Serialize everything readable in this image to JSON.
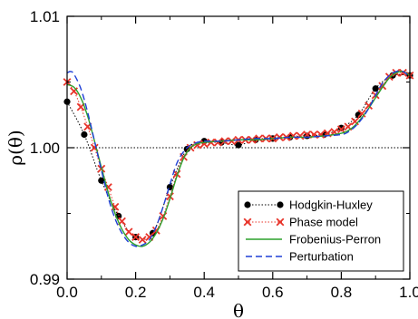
{
  "chart_data": {
    "type": "line",
    "xlabel": "θ",
    "ylabel": "ρ(θ)",
    "xlim": [
      0.0,
      1.0
    ],
    "ylim": [
      0.99,
      1.01
    ],
    "x_ticks": [
      "0.0",
      "0.2",
      "0.4",
      "0.6",
      "0.8",
      "1.0"
    ],
    "y_ticks": [
      "0.99",
      "1.00",
      "1.01"
    ],
    "reference_line_y": 1.0,
    "legend_position": "bottom-right",
    "series": [
      {
        "name": "Hodgkin-Huxley",
        "style": "dotted-circles",
        "color": "#000000",
        "x": [
          0.0,
          0.05,
          0.1,
          0.15,
          0.2,
          0.25,
          0.3,
          0.35,
          0.4,
          0.45,
          0.5,
          0.55,
          0.6,
          0.65,
          0.7,
          0.75,
          0.8,
          0.85,
          0.9,
          0.95,
          1.0
        ],
        "y": [
          1.0035,
          1.001,
          0.9975,
          0.9948,
          0.9932,
          0.9935,
          0.997,
          0.9999,
          1.0005,
          1.0004,
          1.0002,
          1.0006,
          1.0007,
          1.0008,
          1.0009,
          1.001,
          1.0015,
          1.0025,
          1.0045,
          1.0055,
          1.0055
        ]
      },
      {
        "name": "Phase model",
        "style": "dotted-crosses",
        "color": "#e8342a",
        "x": [
          0.0,
          0.02,
          0.04,
          0.06,
          0.08,
          0.1,
          0.12,
          0.14,
          0.16,
          0.18,
          0.2,
          0.22,
          0.24,
          0.26,
          0.28,
          0.3,
          0.32,
          0.34,
          0.36,
          0.38,
          0.4,
          0.42,
          0.44,
          0.46,
          0.48,
          0.5,
          0.52,
          0.54,
          0.56,
          0.58,
          0.6,
          0.62,
          0.64,
          0.66,
          0.68,
          0.7,
          0.72,
          0.74,
          0.76,
          0.78,
          0.8,
          0.82,
          0.84,
          0.86,
          0.88,
          0.9,
          0.92,
          0.94,
          0.96,
          0.98,
          1.0
        ],
        "y": [
          1.005,
          1.0043,
          1.0031,
          1.0016,
          1.0,
          0.9984,
          0.997,
          0.9955,
          0.9944,
          0.9936,
          0.9932,
          0.993,
          0.9932,
          0.9937,
          0.9948,
          0.9963,
          0.998,
          0.9993,
          1.0,
          1.0002,
          1.0003,
          1.0004,
          1.0004,
          1.0005,
          1.0005,
          1.0006,
          1.0006,
          1.0006,
          1.0007,
          1.0007,
          1.0007,
          1.0008,
          1.0008,
          1.0009,
          1.0009,
          1.001,
          1.001,
          1.001,
          1.0011,
          1.0012,
          1.0014,
          1.0016,
          1.002,
          1.0026,
          1.0032,
          1.004,
          1.0047,
          1.0054,
          1.0057,
          1.0057,
          1.0055
        ]
      },
      {
        "name": "Frobenius-Perron",
        "style": "solid",
        "color": "#2ca02c",
        "x": [
          0.0,
          0.02,
          0.04,
          0.06,
          0.08,
          0.1,
          0.12,
          0.14,
          0.16,
          0.18,
          0.2,
          0.22,
          0.24,
          0.26,
          0.28,
          0.3,
          0.32,
          0.34,
          0.36,
          0.38,
          0.4,
          0.45,
          0.5,
          0.55,
          0.6,
          0.65,
          0.7,
          0.75,
          0.8,
          0.82,
          0.84,
          0.86,
          0.88,
          0.9,
          0.92,
          0.94,
          0.96,
          0.98,
          1.0
        ],
        "y": [
          1.0048,
          1.0046,
          1.0038,
          1.0024,
          1.0005,
          0.9985,
          0.9966,
          0.995,
          0.9938,
          0.993,
          0.9926,
          0.9925,
          0.9928,
          0.9935,
          0.9946,
          0.9961,
          0.9978,
          0.9992,
          1.0,
          1.0003,
          1.0004,
          1.0005,
          1.0006,
          1.0006,
          1.0007,
          1.0008,
          1.0008,
          1.0009,
          1.0011,
          1.0013,
          1.0017,
          1.0023,
          1.003,
          1.0038,
          1.0046,
          1.0053,
          1.0057,
          1.0058,
          1.0055
        ]
      },
      {
        "name": "Perturbation",
        "style": "dashed",
        "color": "#1f3fd6",
        "x": [
          0.0,
          0.01,
          0.02,
          0.04,
          0.06,
          0.08,
          0.1,
          0.12,
          0.14,
          0.16,
          0.18,
          0.2,
          0.22,
          0.24,
          0.26,
          0.28,
          0.3,
          0.32,
          0.34,
          0.36,
          0.38,
          0.4,
          0.45,
          0.5,
          0.55,
          0.6,
          0.65,
          0.7,
          0.75,
          0.8,
          0.82,
          0.84,
          0.86,
          0.88,
          0.9,
          0.92,
          0.94,
          0.96,
          0.98,
          1.0
        ],
        "y": [
          1.0057,
          1.0058,
          1.0056,
          1.0045,
          1.0027,
          1.0005,
          0.9983,
          0.9962,
          0.9946,
          0.9935,
          0.9928,
          0.9925,
          0.9926,
          0.993,
          0.994,
          0.9955,
          0.9972,
          0.9988,
          0.9997,
          1.0002,
          1.0004,
          1.0005,
          1.0005,
          1.0006,
          1.0007,
          1.0007,
          1.0008,
          1.0008,
          1.0009,
          1.001,
          1.0012,
          1.0016,
          1.0022,
          1.003,
          1.004,
          1.0049,
          1.0055,
          1.0058,
          1.0058,
          1.0054
        ]
      }
    ]
  }
}
